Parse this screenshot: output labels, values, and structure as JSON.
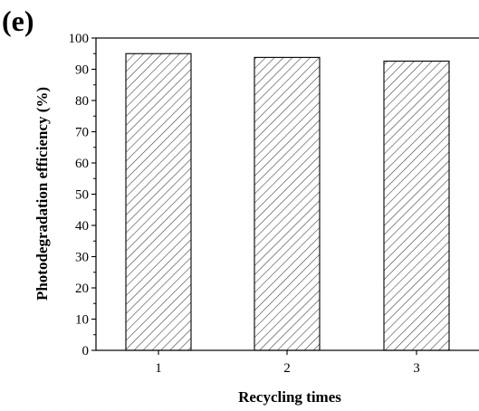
{
  "panel_label": "(e)",
  "chart_data": {
    "type": "bar",
    "categories": [
      "1",
      "2",
      "3"
    ],
    "values": [
      95.0,
      93.8,
      92.6
    ],
    "xlabel": "Recycling times",
    "ylabel": "Photodegradation efficiency (%)",
    "ylim": [
      0,
      100
    ],
    "yticks": [
      0,
      10,
      20,
      30,
      40,
      50,
      60,
      70,
      80,
      90,
      100
    ],
    "grid": false,
    "bar_pattern": "diagonal-hatch",
    "bar_fill": "#ffffff",
    "bar_stroke": "#333333"
  }
}
